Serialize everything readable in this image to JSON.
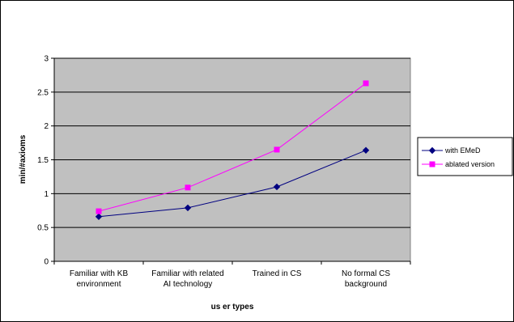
{
  "chart_data": {
    "type": "line",
    "categories": [
      [
        "Familiar with KB",
        "environment"
      ],
      [
        "Familiar with related",
        "AI technology"
      ],
      [
        "Trained in CS"
      ],
      [
        "No formal CS",
        "background"
      ]
    ],
    "series": [
      {
        "name": "with EMeD",
        "values": [
          0.66,
          0.79,
          1.1,
          1.64
        ],
        "color": "#000080",
        "marker": "diamond"
      },
      {
        "name": "ablated version",
        "values": [
          0.74,
          1.09,
          1.65,
          2.63
        ],
        "color": "#ff00ff",
        "marker": "square"
      }
    ],
    "xlabel": "us er types",
    "ylabel": "min/#axioms",
    "ylim": [
      0,
      3
    ],
    "yticks": [
      "0",
      "0.5",
      "1",
      "1.5",
      "2",
      "2.5",
      "3"
    ],
    "grid": true,
    "plot_background": "#c0c0c0",
    "legend_position": "right"
  }
}
